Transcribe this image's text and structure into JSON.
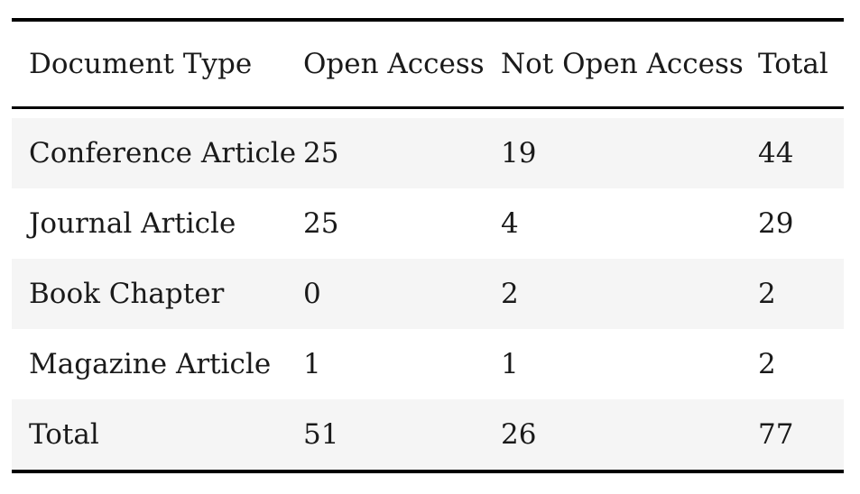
{
  "table": {
    "headers": [
      "Document Type",
      "Open Access",
      "Not Open Access",
      "Total"
    ],
    "rows": [
      [
        "Conference Article",
        "25",
        "19",
        "44"
      ],
      [
        "Journal Article",
        "25",
        "4",
        "29"
      ],
      [
        "Book Chapter",
        "0",
        "2",
        "2"
      ],
      [
        "Magazine Article",
        "1",
        "1",
        "2"
      ],
      [
        "Total",
        "51",
        "26",
        "77"
      ]
    ],
    "row_shading_color": "#f5f5f5",
    "rule_color": "#000000"
  }
}
